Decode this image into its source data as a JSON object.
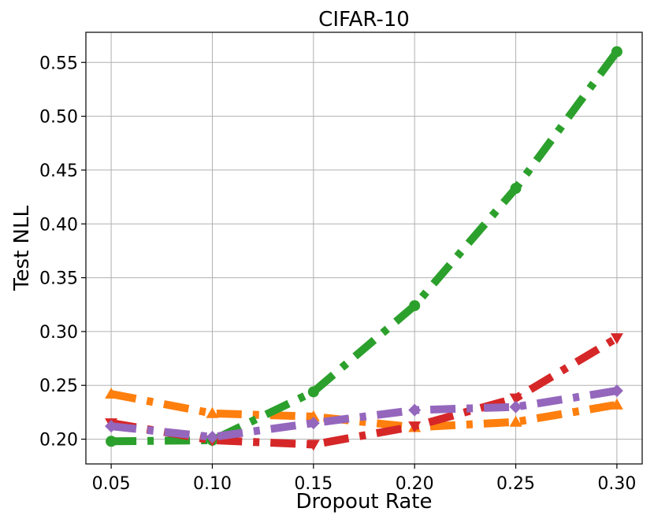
{
  "chart_data": {
    "type": "line",
    "title": "CIFAR-10",
    "xlabel": "Dropout Rate",
    "ylabel": "Test NLL",
    "x": [
      0.05,
      0.1,
      0.15,
      0.2,
      0.25,
      0.3
    ],
    "x_tick_labels": [
      "0.05",
      "0.10",
      "0.15",
      "0.20",
      "0.25",
      "0.30"
    ],
    "y_tick_labels": [
      "0.20",
      "0.25",
      "0.30",
      "0.35",
      "0.40",
      "0.45",
      "0.50",
      "0.55"
    ],
    "y_ticks": [
      0.2,
      0.25,
      0.3,
      0.35,
      0.4,
      0.45,
      0.5,
      0.55
    ],
    "xlim": [
      0.0375,
      0.3125
    ],
    "ylim": [
      0.177,
      0.578
    ],
    "grid": true,
    "legend": "none",
    "series": [
      {
        "color": "#ff7f0e",
        "marker": "triangle-up",
        "linestyle": "dash-dot",
        "values": [
          0.242,
          0.224,
          0.221,
          0.211,
          0.216,
          0.232
        ]
      },
      {
        "color": "#2ca02c",
        "marker": "circle",
        "linestyle": "dash-dot",
        "values": [
          0.198,
          0.199,
          0.244,
          0.324,
          0.433,
          0.56
        ]
      },
      {
        "color": "#d62728",
        "marker": "triangle-down",
        "linestyle": "dash-dot",
        "values": [
          0.215,
          0.199,
          0.195,
          0.212,
          0.238,
          0.294
        ]
      },
      {
        "color": "#9467bd",
        "marker": "diamond",
        "linestyle": "dash-dot",
        "values": [
          0.212,
          0.202,
          0.215,
          0.227,
          0.23,
          0.245
        ]
      }
    ]
  }
}
